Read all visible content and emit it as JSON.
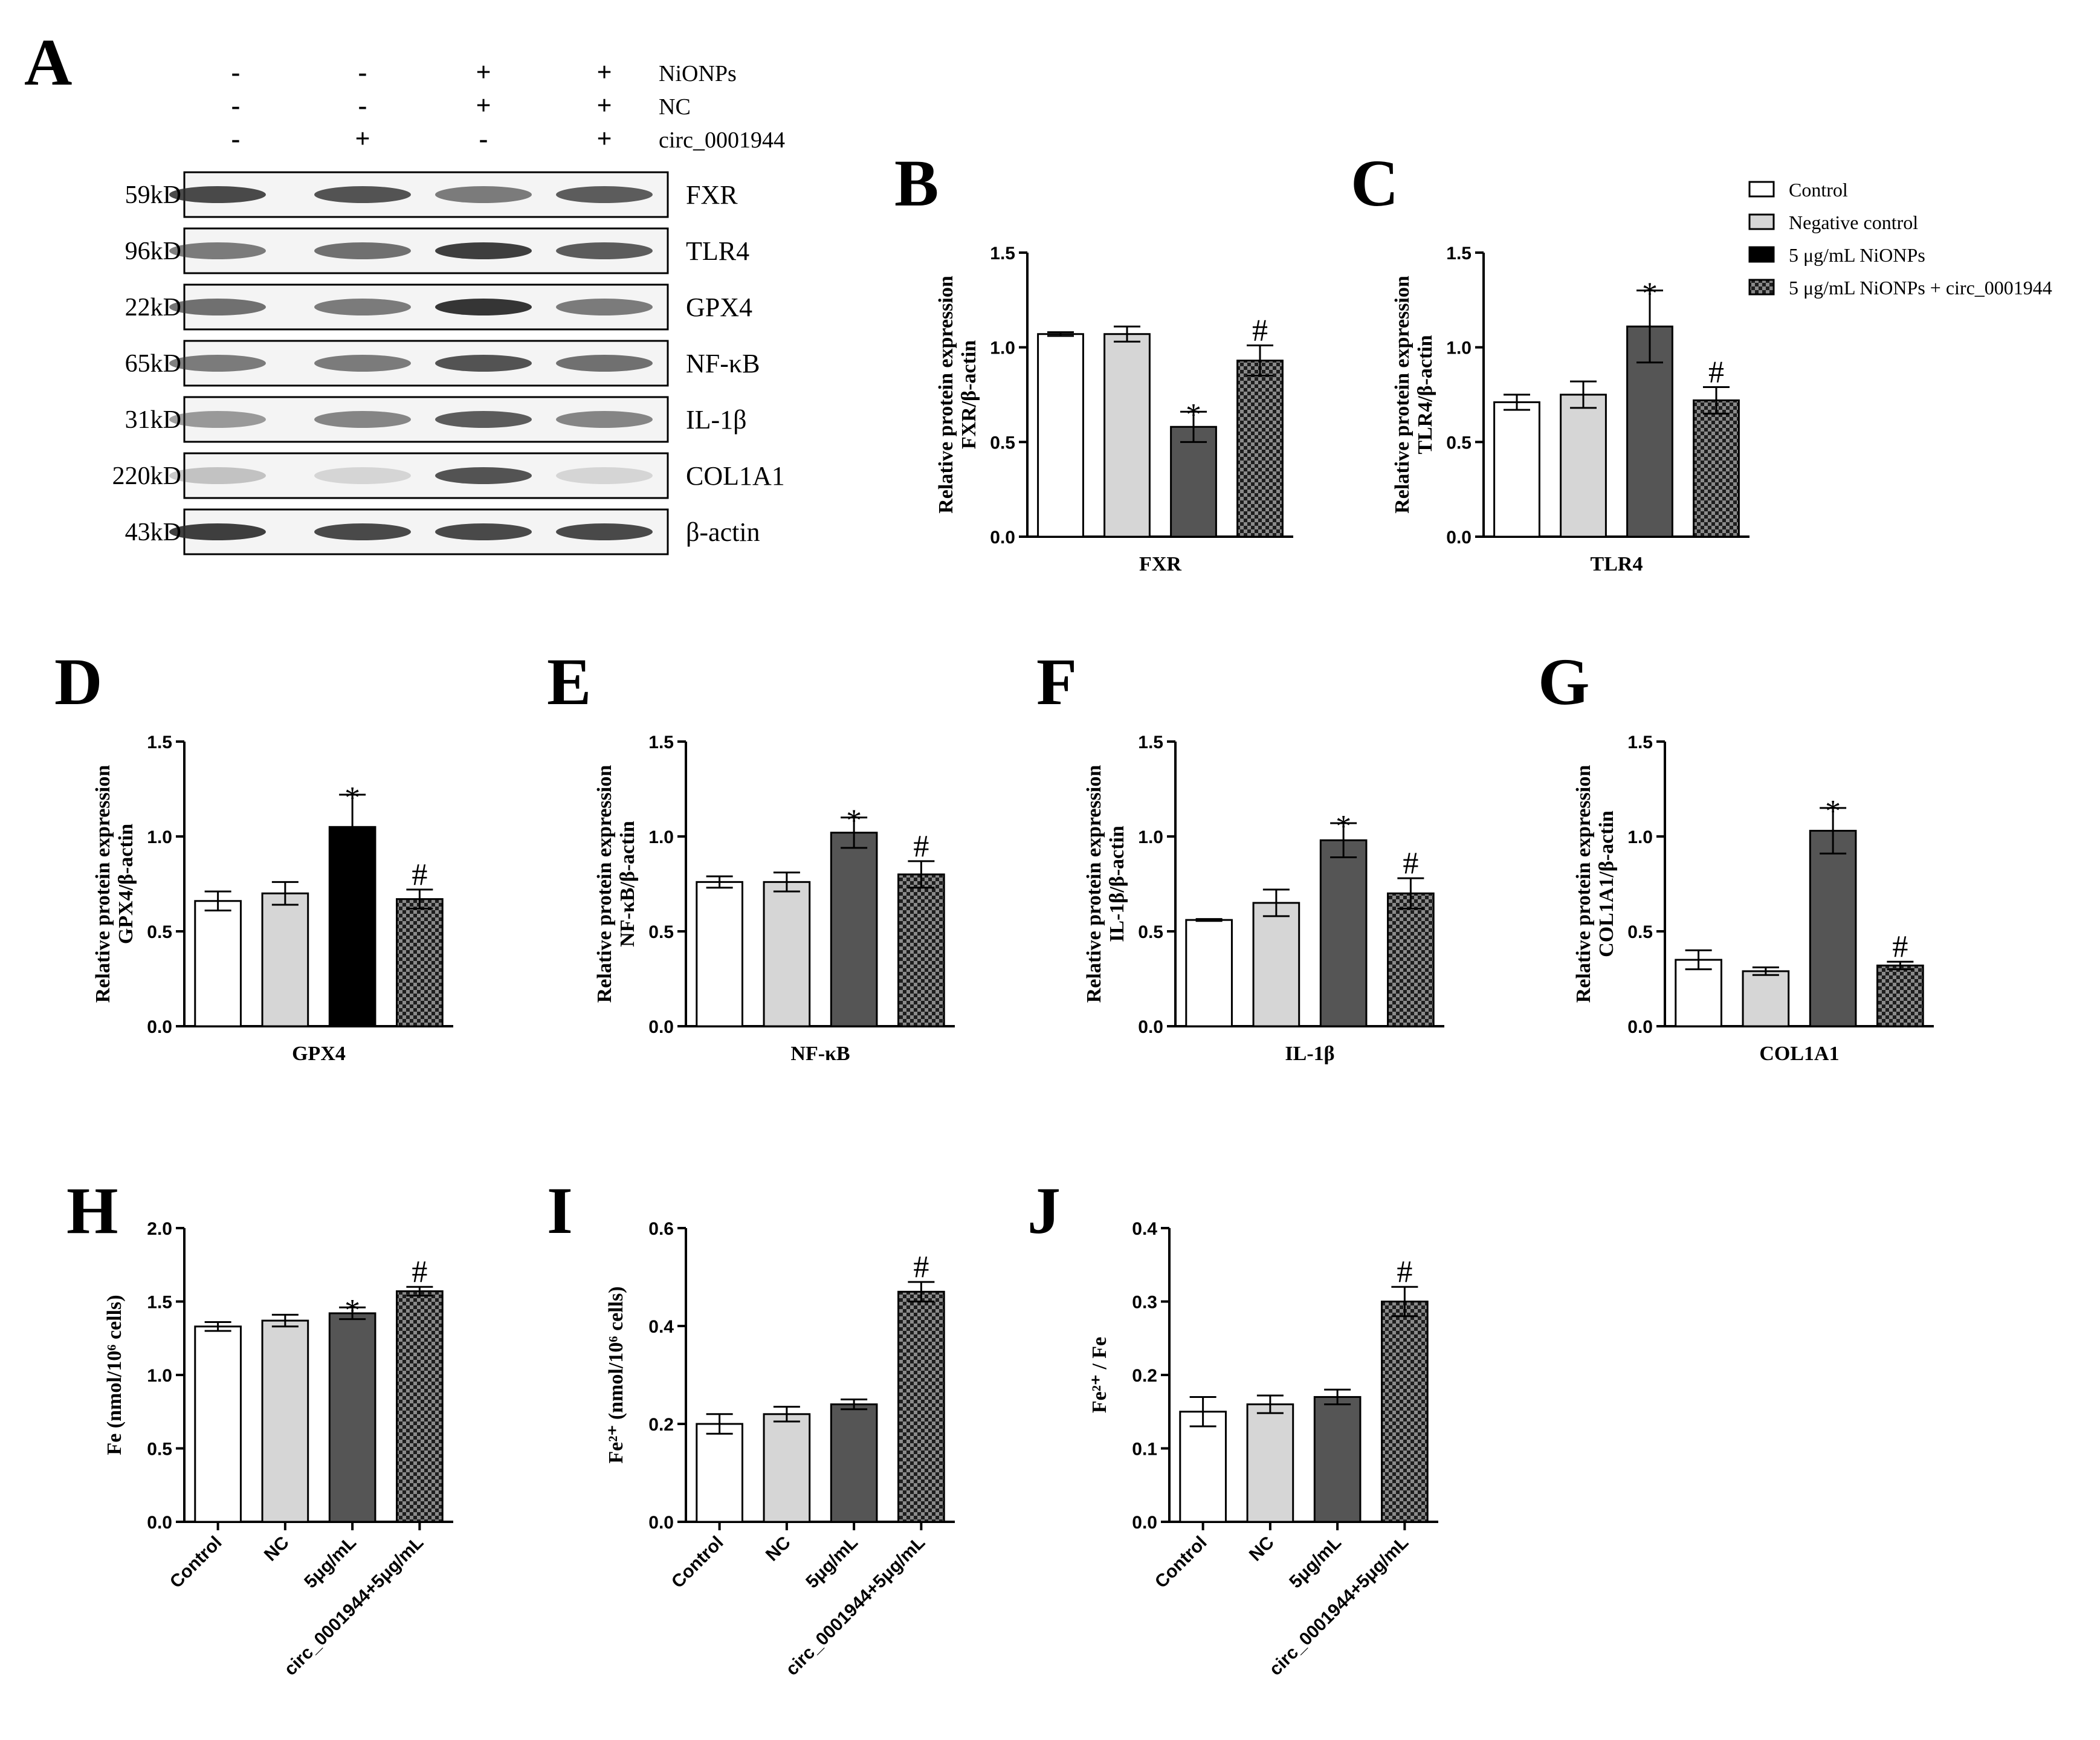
{
  "colors": {
    "control": "#ffffff",
    "negative_control": "#d6d6d6",
    "nionps": "#555555",
    "nionps_black": "#000000",
    "circ_pattern": "checker-grey",
    "axis": "#000000",
    "blot_bg": "#f4f4f4",
    "band": "#2a2a2a"
  },
  "panel_letters": [
    "A",
    "B",
    "C",
    "D",
    "E",
    "F",
    "G",
    "H",
    "I",
    "J"
  ],
  "western_blot": {
    "conditions": [
      {
        "label": "NiONPs",
        "signs": [
          "-",
          "-",
          "+",
          "+"
        ]
      },
      {
        "label": "NC",
        "signs": [
          "-",
          "-",
          "+",
          "+"
        ]
      },
      {
        "label": "circ_0001944",
        "signs": [
          "-",
          "+",
          "-",
          "+"
        ]
      }
    ],
    "rows": [
      {
        "kd": "59kD",
        "protein": "FXR",
        "intensity": [
          0.85,
          0.8,
          0.6,
          0.75
        ]
      },
      {
        "kd": "96kD",
        "protein": "TLR4",
        "intensity": [
          0.6,
          0.65,
          0.9,
          0.75
        ]
      },
      {
        "kd": "22kD",
        "protein": "GPX4",
        "intensity": [
          0.65,
          0.6,
          0.95,
          0.6
        ]
      },
      {
        "kd": "65kD",
        "protein": "NF-κB",
        "intensity": [
          0.6,
          0.6,
          0.8,
          0.65
        ]
      },
      {
        "kd": "31kD",
        "protein": "IL-1β",
        "intensity": [
          0.45,
          0.55,
          0.75,
          0.55
        ]
      },
      {
        "kd": "220kD",
        "protein": "COL1A1",
        "intensity": [
          0.25,
          0.15,
          0.8,
          0.15
        ]
      },
      {
        "kd": "43kD",
        "protein": "β-actin",
        "intensity": [
          0.9,
          0.85,
          0.85,
          0.85
        ]
      }
    ]
  },
  "legend": {
    "items": [
      "Control",
      "Negative control",
      "5 μg/mL NiONPs",
      "5 μg/mL NiONPs + circ_0001944"
    ]
  },
  "chart_data": [
    {
      "panel": "B",
      "type": "bar",
      "xlabel": "FXR",
      "ylabel_lines": [
        "Relative protein expression",
        "FXR/β-actin"
      ],
      "ylim": [
        0,
        1.5
      ],
      "ticks": [
        "0.0",
        "0.5",
        "1.0",
        "1.5"
      ],
      "values": [
        1.07,
        1.07,
        0.58,
        0.93
      ],
      "errors": [
        0.01,
        0.04,
        0.08,
        0.08
      ],
      "marks": [
        "",
        "",
        "*",
        "#"
      ],
      "styles": [
        "control",
        "negative_control",
        "nionps",
        "circ"
      ]
    },
    {
      "panel": "C",
      "type": "bar",
      "xlabel": "TLR4",
      "ylabel_lines": [
        "Relative protein expression",
        "TLR4/β-actin"
      ],
      "ylim": [
        0,
        1.5
      ],
      "ticks": [
        "0.0",
        "0.5",
        "1.0",
        "1.5"
      ],
      "values": [
        0.71,
        0.75,
        1.11,
        0.72
      ],
      "errors": [
        0.04,
        0.07,
        0.19,
        0.07
      ],
      "marks": [
        "",
        "",
        "*",
        "#"
      ],
      "styles": [
        "control",
        "negative_control",
        "nionps",
        "circ"
      ]
    },
    {
      "panel": "D",
      "type": "bar",
      "xlabel": "GPX4",
      "ylabel_lines": [
        "Relative protein expression",
        "GPX4/β-actin"
      ],
      "ylim": [
        0,
        1.5
      ],
      "ticks": [
        "0.0",
        "0.5",
        "1.0",
        "1.5"
      ],
      "values": [
        0.66,
        0.7,
        1.05,
        0.67
      ],
      "errors": [
        0.05,
        0.06,
        0.17,
        0.05
      ],
      "marks": [
        "",
        "",
        "*",
        "#"
      ],
      "styles": [
        "control",
        "negative_control",
        "nionps_black",
        "circ"
      ]
    },
    {
      "panel": "E",
      "type": "bar",
      "xlabel": "NF-κB",
      "ylabel_lines": [
        "Relative protein expression",
        "NF-κB/β-actin"
      ],
      "ylim": [
        0,
        1.5
      ],
      "ticks": [
        "0.0",
        "0.5",
        "1.0",
        "1.5"
      ],
      "values": [
        0.76,
        0.76,
        1.02,
        0.8
      ],
      "errors": [
        0.03,
        0.05,
        0.08,
        0.07
      ],
      "marks": [
        "",
        "",
        "*",
        "#"
      ],
      "styles": [
        "control",
        "negative_control",
        "nionps",
        "circ"
      ]
    },
    {
      "panel": "F",
      "type": "bar",
      "xlabel": "IL-1β",
      "ylabel_lines": [
        "Relative protein expression",
        "IL-1β/β-actin"
      ],
      "ylim": [
        0,
        1.5
      ],
      "ticks": [
        "0.0",
        "0.5",
        "1.0",
        "1.5"
      ],
      "values": [
        0.56,
        0.65,
        0.98,
        0.7
      ],
      "errors": [
        0.005,
        0.07,
        0.09,
        0.08
      ],
      "marks": [
        "",
        "",
        "*",
        "#"
      ],
      "styles": [
        "control",
        "negative_control",
        "nionps",
        "circ"
      ]
    },
    {
      "panel": "G",
      "type": "bar",
      "xlabel": "COL1A1",
      "ylabel_lines": [
        "Relative protein expression",
        "COL1A1/β-actin"
      ],
      "ylim": [
        0,
        1.5
      ],
      "ticks": [
        "0.0",
        "0.5",
        "1.0",
        "1.5"
      ],
      "values": [
        0.35,
        0.29,
        1.03,
        0.32
      ],
      "errors": [
        0.05,
        0.02,
        0.12,
        0.02
      ],
      "marks": [
        "",
        "",
        "*",
        "#"
      ],
      "styles": [
        "control",
        "negative_control",
        "nionps",
        "circ"
      ]
    },
    {
      "panel": "H",
      "type": "bar",
      "xlabel": "",
      "ylabel_lines": [
        "Fe (nmol/10⁶ cells)"
      ],
      "categories": [
        "Control",
        "NC",
        "5μg/mL",
        "circ_0001944+5μg/mL"
      ],
      "ylim": [
        0,
        2.0
      ],
      "ticks": [
        "0.0",
        "0.5",
        "1.0",
        "1.5",
        "2.0"
      ],
      "values": [
        1.33,
        1.37,
        1.42,
        1.57
      ],
      "errors": [
        0.03,
        0.04,
        0.04,
        0.03
      ],
      "marks": [
        "",
        "",
        "*",
        "#"
      ],
      "styles": [
        "control",
        "negative_control",
        "nionps",
        "circ"
      ]
    },
    {
      "panel": "I",
      "type": "bar",
      "xlabel": "",
      "ylabel_lines": [
        "Fe²⁺ (nmol/10⁶ cells)"
      ],
      "categories": [
        "Control",
        "NC",
        "5μg/mL",
        "circ_0001944+5μg/mL"
      ],
      "ylim": [
        0,
        0.6
      ],
      "ticks": [
        "0.0",
        "0.2",
        "0.4",
        "0.6"
      ],
      "values": [
        0.2,
        0.22,
        0.24,
        0.47
      ],
      "errors": [
        0.02,
        0.015,
        0.01,
        0.02
      ],
      "marks": [
        "",
        "",
        "",
        "#"
      ],
      "styles": [
        "control",
        "negative_control",
        "nionps",
        "circ"
      ]
    },
    {
      "panel": "J",
      "type": "bar",
      "xlabel": "",
      "ylabel_lines": [
        "Fe²⁺ / Fe"
      ],
      "categories": [
        "Control",
        "NC",
        "5μg/mL",
        "circ_0001944+5μg/mL"
      ],
      "ylim": [
        0,
        0.4
      ],
      "ticks": [
        "0.0",
        "0.1",
        "0.2",
        "0.3",
        "0.4"
      ],
      "values": [
        0.15,
        0.16,
        0.17,
        0.3
      ],
      "errors": [
        0.02,
        0.012,
        0.01,
        0.02
      ],
      "marks": [
        "",
        "",
        "",
        "#"
      ],
      "styles": [
        "control",
        "negative_control",
        "nionps",
        "circ"
      ]
    }
  ]
}
